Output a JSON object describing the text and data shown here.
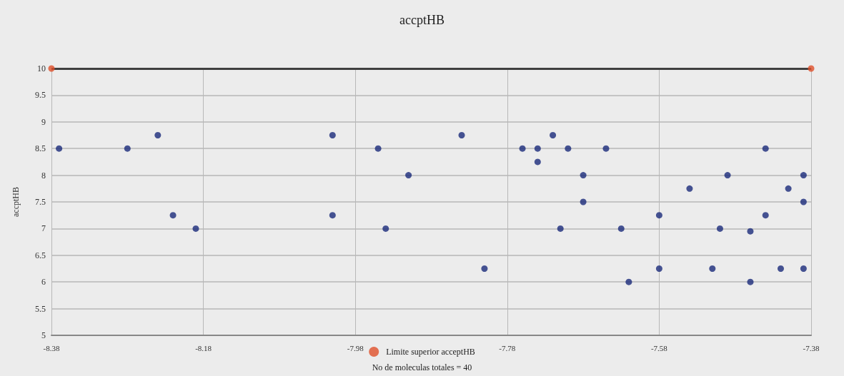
{
  "chart_data": {
    "type": "scatter",
    "title": "accptHB",
    "ylabel": "accptHB",
    "xlim": [
      -8.38,
      -7.38
    ],
    "xticks": [
      -8.38,
      -8.18,
      -7.98,
      -7.78,
      -7.58,
      -7.38
    ],
    "ylim": [
      5,
      10
    ],
    "yticks": [
      5,
      5.5,
      6,
      6.5,
      7,
      7.5,
      8,
      8.5,
      9,
      9.5,
      10
    ],
    "grid": true,
    "marker": "circle",
    "legend": "bottom",
    "ref_lines": [
      {
        "axis": "y",
        "value": 10,
        "color": "#404040"
      }
    ],
    "annotations": [
      "No de moleculas totales = 40"
    ],
    "series": [
      {
        "color": "#1a2a7a",
        "x": [
          -8.37,
          -8.28,
          -8.24,
          -8.22,
          -8.19,
          -8.01,
          -8.01,
          -7.95,
          -7.94,
          -7.91,
          -7.84,
          -7.81,
          -7.76,
          -7.74,
          -7.74,
          -7.72,
          -7.7,
          -7.71,
          -7.68,
          -7.68,
          -7.65,
          -7.63,
          -7.62,
          -7.58,
          -7.58,
          -7.54,
          -7.51,
          -7.5,
          -7.49,
          -7.46,
          -7.46,
          -7.44,
          -7.44,
          -7.42,
          -7.41,
          -7.39,
          -7.39,
          -7.39
        ],
        "values": [
          8.5,
          8.5,
          8.75,
          7.25,
          7,
          8.75,
          7.25,
          8.5,
          7,
          8,
          8.75,
          6.25,
          8.5,
          8.25,
          8.5,
          8.75,
          8.5,
          7,
          8,
          7.5,
          8.5,
          7,
          6,
          6.25,
          7.25,
          7.75,
          6.25,
          7,
          8,
          6,
          6.95,
          7.25,
          8.5,
          6.25,
          7.75,
          6.25,
          7.5,
          8
        ]
      },
      {
        "name": "Limite superior acceptHB",
        "color": "#e0502a",
        "x": [
          -8.38,
          -7.38
        ],
        "values": [
          10,
          10
        ]
      }
    ]
  }
}
